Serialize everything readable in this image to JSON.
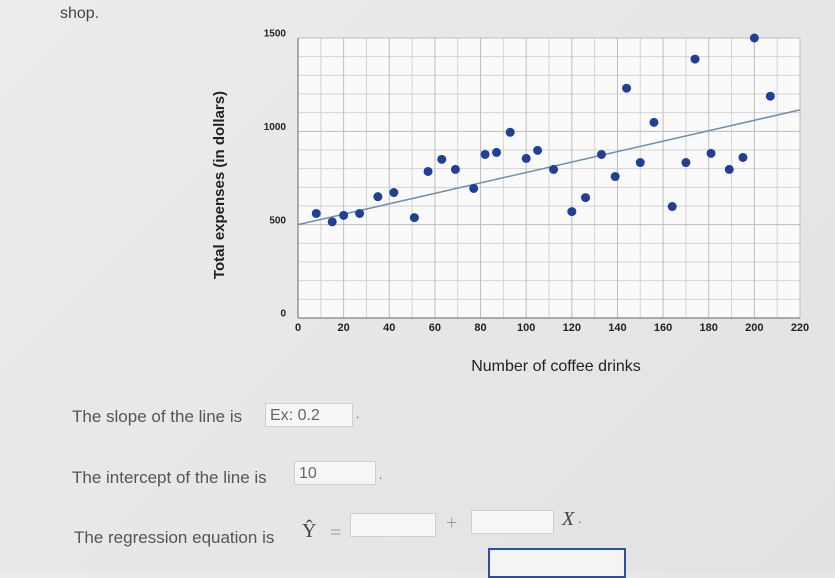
{
  "header": {
    "text": "shop."
  },
  "chart_data": {
    "type": "scatter",
    "x_label": "Number of coffee drinks",
    "y_label": "Total expenses (in dollars)",
    "xlim": [
      0,
      220
    ],
    "xticks": [
      0,
      20,
      40,
      60,
      80,
      100,
      120,
      140,
      160,
      180,
      200,
      220
    ],
    "ylim": [
      0,
      1500
    ],
    "yticks": [
      0,
      500,
      1000,
      1500
    ],
    "grid": true,
    "series": [
      {
        "color": "#1f3f9a",
        "x": [
          8,
          15,
          20,
          27,
          35,
          42,
          51,
          57,
          63,
          69,
          77,
          82,
          87,
          93,
          100,
          105,
          112,
          120,
          126,
          133,
          139,
          144,
          150,
          156,
          164,
          170,
          174,
          181,
          189,
          195,
          200,
          207
        ],
        "values": [
          560,
          515,
          550,
          560,
          650,
          672,
          538,
          785,
          850,
          796,
          694,
          876,
          887,
          995,
          855,
          898,
          796,
          570,
          645,
          876,
          758,
          1231,
          833,
          1048,
          597,
          833,
          1387,
          882,
          796,
          860,
          1500,
          1188
        ]
      }
    ],
    "trendline": {
      "color": "#6f8fa8",
      "x": [
        0,
        220
      ],
      "values": [
        500,
        1115
      ]
    }
  },
  "form": {
    "slope_label": "The slope of the line is",
    "slope_input": "Ex: 0.2",
    "slope_suffix": ".",
    "intercept_label": "The intercept of the line is",
    "intercept_input": "10",
    "intercept_suffix": ".",
    "equation_label": "The regression equation is",
    "y_hat": "Ŷ",
    "equals": "=",
    "plus": "+",
    "x_var": "X",
    "x_suffix": "."
  }
}
